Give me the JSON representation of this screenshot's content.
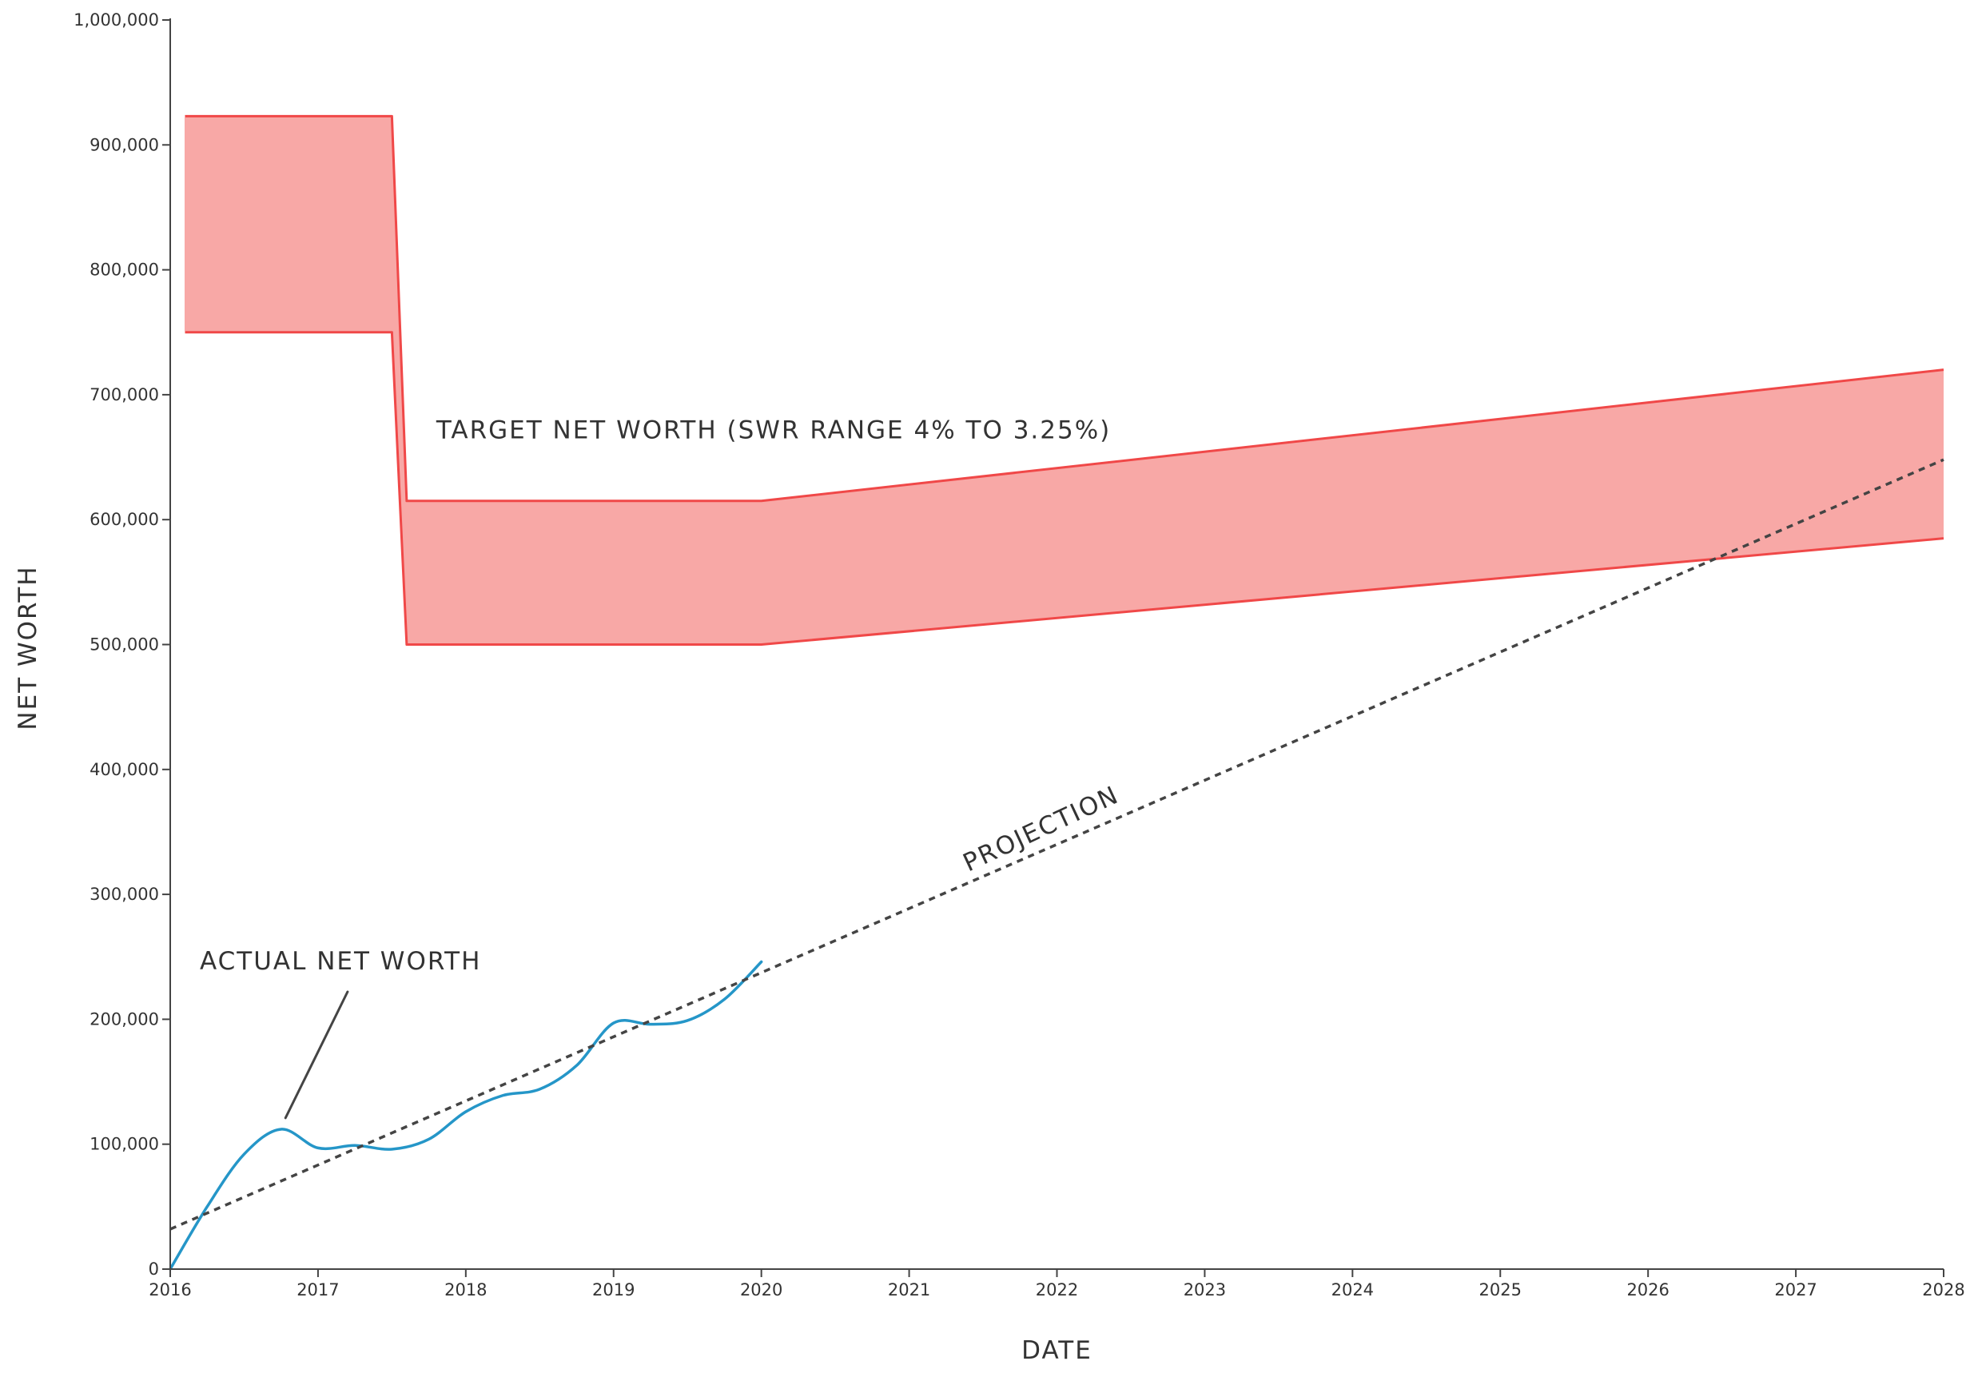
{
  "chart_data": {
    "type": "line",
    "xlabel": "DATE",
    "ylabel": "NET WORTH",
    "xlim": [
      2016,
      2028
    ],
    "ylim": [
      0,
      1000000
    ],
    "x_ticks": [
      2016,
      2017,
      2018,
      2019,
      2020,
      2021,
      2022,
      2023,
      2024,
      2025,
      2026,
      2027,
      2028
    ],
    "y_ticks": [
      0,
      100000,
      200000,
      300000,
      400000,
      500000,
      600000,
      700000,
      800000,
      900000,
      1000000
    ],
    "y_tick_labels": [
      "0",
      "100,000",
      "200,000",
      "300,000",
      "400,000",
      "500,000",
      "600,000",
      "700,000",
      "800,000",
      "900,000",
      "1,000,000"
    ],
    "grid": false,
    "colors": {
      "band_fill": "#f8a8a6",
      "band_line": "#f04848",
      "actual": "#2596c8",
      "projection": "#444444",
      "axis": "#444444",
      "text": "#333333"
    },
    "series": [
      {
        "type": "band",
        "upper": [
          {
            "x": 2016.1,
            "y": 923000
          },
          {
            "x": 2017.5,
            "y": 923000
          },
          {
            "x": 2017.6,
            "y": 615000
          },
          {
            "x": 2020.0,
            "y": 615000
          },
          {
            "x": 2028.0,
            "y": 720000
          }
        ],
        "lower": [
          {
            "x": 2016.1,
            "y": 750000
          },
          {
            "x": 2017.5,
            "y": 750000
          },
          {
            "x": 2017.6,
            "y": 500000
          },
          {
            "x": 2020.0,
            "y": 500000
          },
          {
            "x": 2028.0,
            "y": 585000
          }
        ]
      },
      {
        "type": "line",
        "style": "solid",
        "points": [
          {
            "x": 2016.0,
            "y": 0
          },
          {
            "x": 2016.25,
            "y": 50000
          },
          {
            "x": 2016.5,
            "y": 92000
          },
          {
            "x": 2016.75,
            "y": 112000
          },
          {
            "x": 2017.0,
            "y": 97000
          },
          {
            "x": 2017.25,
            "y": 99000
          },
          {
            "x": 2017.5,
            "y": 96000
          },
          {
            "x": 2017.75,
            "y": 104000
          },
          {
            "x": 2018.0,
            "y": 126000
          },
          {
            "x": 2018.25,
            "y": 139000
          },
          {
            "x": 2018.5,
            "y": 144000
          },
          {
            "x": 2018.75,
            "y": 163000
          },
          {
            "x": 2019.0,
            "y": 197000
          },
          {
            "x": 2019.25,
            "y": 196000
          },
          {
            "x": 2019.5,
            "y": 199000
          },
          {
            "x": 2019.75,
            "y": 216000
          },
          {
            "x": 2020.0,
            "y": 246000
          }
        ]
      },
      {
        "type": "line",
        "style": "dashed",
        "points": [
          {
            "x": 2016.0,
            "y": 32000
          },
          {
            "x": 2028.0,
            "y": 648000
          }
        ]
      }
    ],
    "annotations": [
      {
        "text": "TARGET NET WORTH (SWR RANGE 4% TO 3.25%)",
        "x": 2017.8,
        "y": 665000
      },
      {
        "text": "ACTUAL NET WORTH",
        "x": 2016.2,
        "y": 240000,
        "pointer_to": {
          "x": 2016.78,
          "y": 121000
        },
        "pointer_from": {
          "x": 2017.2,
          "y": 222000
        }
      },
      {
        "text": "PROJECTION",
        "x": 2021.4,
        "y": 318000,
        "rotate": -25
      }
    ]
  }
}
